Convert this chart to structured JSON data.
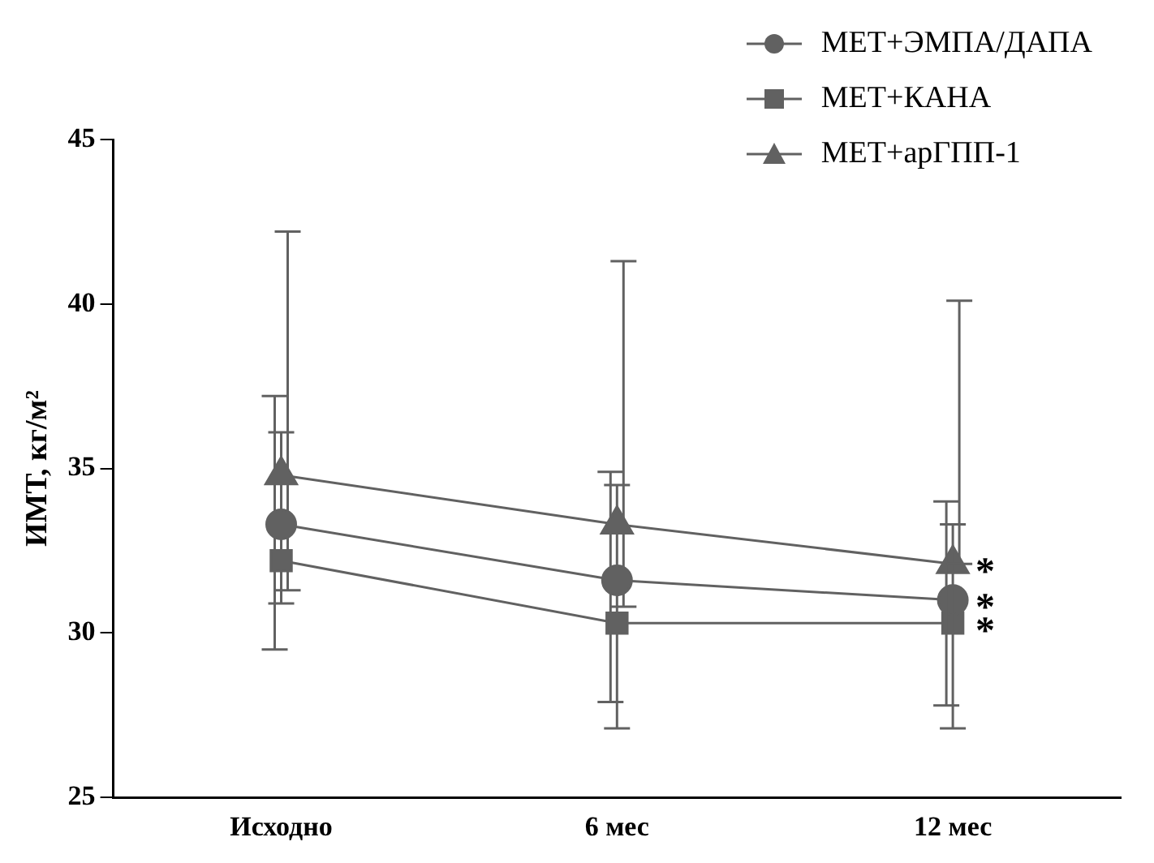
{
  "chart_data": {
    "type": "line",
    "ylabel": "ИМТ, кг/м²",
    "categories": [
      "Исходно",
      "6 мес",
      "12 мес"
    ],
    "series": [
      {
        "name": "МЕТ+ЭМПА/ДАПА",
        "color": "#616161",
        "marker": "circle",
        "values": [
          33.3,
          31.6,
          31.0
        ],
        "errors": [
          [
            29.5,
            37.2
          ],
          [
            27.9,
            34.9
          ],
          [
            27.8,
            34.0
          ]
        ]
      },
      {
        "name": "МЕТ+КАНА",
        "color": "#616161",
        "marker": "square",
        "values": [
          32.2,
          30.3,
          30.3
        ],
        "errors": [
          [
            30.9,
            36.1
          ],
          [
            27.1,
            34.5
          ],
          [
            27.1,
            33.3
          ]
        ]
      },
      {
        "name": "МЕТ+арГПП-1",
        "color": "#616161",
        "marker": "triangle",
        "values": [
          34.8,
          33.3,
          32.1
        ],
        "errors": [
          [
            31.3,
            42.2
          ],
          [
            30.8,
            41.3
          ],
          [
            32.1,
            40.1
          ]
        ]
      }
    ],
    "ylim": [
      25,
      45
    ],
    "yticks": [
      25,
      30,
      35,
      40,
      45
    ],
    "grid": false,
    "legend": "top right",
    "annotations": [
      {
        "text": "*",
        "x": "12 мес",
        "y": 32.1
      },
      {
        "text": "*",
        "x": "12 мес",
        "y": 31.0
      },
      {
        "text": "*",
        "x": "12 мес",
        "y": 30.3
      }
    ]
  }
}
